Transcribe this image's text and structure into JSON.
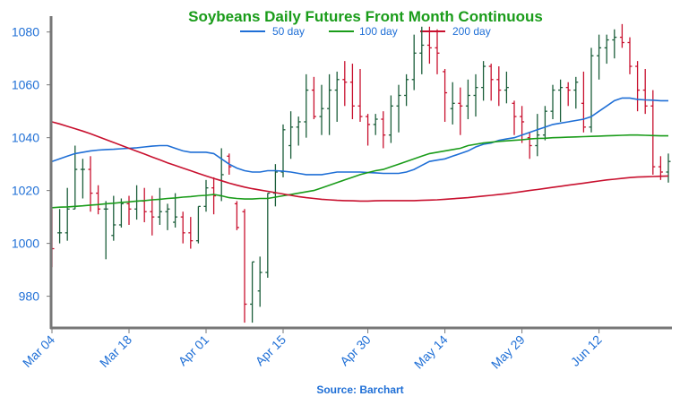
{
  "chart_data": {
    "type": "line",
    "title": "Soybeans Daily Futures Front Month Continuous",
    "source": "Source: Barchart",
    "xlabel": "",
    "ylabel": "",
    "ylim": [
      968,
      1086
    ],
    "yticks": [
      980,
      1000,
      1020,
      1040,
      1060,
      1080
    ],
    "x_tick_labels": [
      "Mar 04",
      "Mar 18",
      "Apr 01",
      "Apr 15",
      "Apr 30",
      "May 14",
      "May 29",
      "Jun 12"
    ],
    "x_tick_index": [
      0,
      10,
      20,
      30,
      41,
      51,
      61,
      71
    ],
    "grid": false,
    "legend_position": "top-center",
    "colors": {
      "title": "#1a9c1a",
      "axis_text": "#1f6fd6",
      "axis_line": "#777777",
      "ohlc_up": "#1b5e3a",
      "ohlc_down": "#c8102e",
      "ma50": "#1f6fd6",
      "ma100": "#1a9c1a",
      "ma200": "#c8102e"
    },
    "ohlc": [
      [
        1013,
        1013,
        991,
        998
      ],
      [
        1004,
        1013,
        1000,
        1004
      ],
      [
        1004,
        1021,
        1001,
        1013
      ],
      [
        1013,
        1037,
        1013,
        1028
      ],
      [
        1028,
        1032,
        1017,
        1028
      ],
      [
        1028,
        1033,
        1012,
        1019
      ],
      [
        1019,
        1022,
        1011,
        1013
      ],
      [
        1013,
        1016,
        994,
        1013
      ],
      [
        1003,
        1018,
        1001,
        1007
      ],
      [
        1007,
        1017,
        1006,
        1015
      ],
      [
        1015,
        1018,
        1007,
        1013
      ],
      [
        1013,
        1022,
        1009,
        1016
      ],
      [
        1016,
        1021,
        1008,
        1012
      ],
      [
        1012,
        1018,
        1003,
        1010
      ],
      [
        1010,
        1021,
        1007,
        1012
      ],
      [
        1012,
        1015,
        1005,
        1013
      ],
      [
        1008,
        1019,
        1006,
        1010
      ],
      [
        1010,
        1012,
        1000,
        1004
      ],
      [
        1004,
        1010,
        998,
        1001
      ],
      [
        1001,
        1014,
        1000,
        1014
      ],
      [
        1014,
        1024,
        1012,
        1021
      ],
      [
        1021,
        1025,
        1011,
        1018
      ],
      [
        1018,
        1036,
        1016,
        1026
      ],
      [
        1033,
        1034,
        1026,
        1029
      ],
      [
        1015,
        1016,
        1005,
        1006
      ],
      [
        1012,
        1013,
        970,
        977
      ],
      [
        977,
        993,
        970,
        993
      ],
      [
        982,
        995,
        976,
        989
      ],
      [
        989,
        1019,
        987,
        1019
      ],
      [
        1019,
        1030,
        1014,
        1027
      ],
      [
        1027,
        1045,
        1025,
        1043
      ],
      [
        1037,
        1050,
        1032,
        1044
      ],
      [
        1044,
        1048,
        1037,
        1046
      ],
      [
        1046,
        1064,
        1040,
        1058
      ],
      [
        1058,
        1063,
        1047,
        1048
      ],
      [
        1048,
        1060,
        1041,
        1051
      ],
      [
        1051,
        1064,
        1041,
        1058
      ],
      [
        1058,
        1065,
        1046,
        1062
      ],
      [
        1062,
        1069,
        1052,
        1061
      ],
      [
        1061,
        1068,
        1047,
        1052
      ],
      [
        1052,
        1066,
        1046,
        1048
      ],
      [
        1048,
        1049,
        1037,
        1045
      ],
      [
        1045,
        1049,
        1041,
        1047
      ],
      [
        1047,
        1050,
        1036,
        1041
      ],
      [
        1041,
        1056,
        1038,
        1052
      ],
      [
        1052,
        1060,
        1042,
        1056
      ],
      [
        1056,
        1064,
        1052,
        1062
      ],
      [
        1062,
        1079,
        1058,
        1072
      ],
      [
        1072,
        1082,
        1064,
        1075
      ],
      [
        1075,
        1082,
        1068,
        1074
      ],
      [
        1074,
        1081,
        1064,
        1072
      ],
      [
        1065,
        1066,
        1046,
        1057
      ],
      [
        1051,
        1061,
        1045,
        1053
      ],
      [
        1053,
        1059,
        1041,
        1052
      ],
      [
        1052,
        1062,
        1047,
        1056
      ],
      [
        1056,
        1064,
        1048,
        1059
      ],
      [
        1059,
        1069,
        1054,
        1067
      ],
      [
        1067,
        1068,
        1054,
        1062
      ],
      [
        1062,
        1067,
        1052,
        1058
      ],
      [
        1058,
        1065,
        1053,
        1059
      ],
      [
        1053,
        1054,
        1041,
        1048
      ],
      [
        1048,
        1052,
        1038,
        1046
      ],
      [
        1040,
        1042,
        1032,
        1037
      ],
      [
        1037,
        1049,
        1033,
        1041
      ],
      [
        1041,
        1052,
        1039,
        1050
      ],
      [
        1050,
        1060,
        1047,
        1058
      ],
      [
        1058,
        1062,
        1046,
        1059
      ],
      [
        1059,
        1061,
        1052,
        1058
      ],
      [
        1058,
        1063,
        1051,
        1061
      ],
      [
        1053,
        1065,
        1042,
        1044
      ],
      [
        1044,
        1074,
        1042,
        1071
      ],
      [
        1071,
        1079,
        1062,
        1074
      ],
      [
        1074,
        1079,
        1068,
        1077
      ],
      [
        1077,
        1081,
        1070,
        1078
      ],
      [
        1078,
        1083,
        1074,
        1076
      ],
      [
        1076,
        1078,
        1064,
        1067
      ],
      [
        1067,
        1069,
        1050,
        1058
      ],
      [
        1058,
        1066,
        1049,
        1052
      ],
      [
        1052,
        1058,
        1026,
        1029
      ],
      [
        1029,
        1033,
        1024,
        1027
      ],
      [
        1027,
        1034,
        1023,
        1031
      ]
    ],
    "series": [
      {
        "name": "50 day",
        "values": [
          1031,
          1032,
          1033,
          1034,
          1034.5,
          1035,
          1035.3,
          1035.5,
          1035.6,
          1035.8,
          1036,
          1036.2,
          1036.5,
          1036.8,
          1037,
          1037,
          1036,
          1035,
          1034.5,
          1034.5,
          1034.5,
          1034,
          1032,
          1030,
          1028.5,
          1027.5,
          1027,
          1027,
          1027.5,
          1027.5,
          1027.3,
          1027,
          1026.5,
          1026,
          1026,
          1026,
          1026.5,
          1027,
          1027,
          1027,
          1027,
          1026.8,
          1026.7,
          1026.5,
          1026.5,
          1026.5,
          1027,
          1028,
          1029.5,
          1031,
          1031.5,
          1032,
          1033,
          1034,
          1035,
          1036.5,
          1037.5,
          1038,
          1039,
          1039.5,
          1040,
          1041,
          1042,
          1043,
          1044,
          1045,
          1045.5,
          1046,
          1046.5,
          1047,
          1048,
          1050,
          1052,
          1054,
          1055,
          1055,
          1054.5,
          1054.3,
          1054.2,
          1054,
          1054
        ]
      },
      {
        "name": "100 day",
        "values": [
          1013.5,
          1013.7,
          1013.8,
          1014,
          1014.2,
          1014.5,
          1014.7,
          1015,
          1015.2,
          1015.5,
          1015.7,
          1016,
          1016.2,
          1016.5,
          1016.7,
          1017,
          1017.2,
          1017.5,
          1017.7,
          1018,
          1018.2,
          1018.5,
          1018,
          1017.3,
          1017,
          1016.8,
          1016.8,
          1017,
          1017,
          1017.5,
          1018,
          1018.5,
          1019,
          1019.5,
          1020,
          1021,
          1022,
          1023,
          1024,
          1025,
          1026,
          1026.8,
          1027.5,
          1028,
          1029,
          1030,
          1031,
          1032,
          1033,
          1034,
          1034.5,
          1035,
          1035.5,
          1036,
          1037,
          1037.5,
          1038,
          1038.3,
          1038.6,
          1038.8,
          1039,
          1039.2,
          1039.5,
          1039.7,
          1039.8,
          1040,
          1040.1,
          1040.2,
          1040.3,
          1040.4,
          1040.5,
          1040.6,
          1040.7,
          1040.8,
          1040.9,
          1041,
          1041,
          1040.9,
          1040.8,
          1040.7,
          1040.7
        ]
      },
      {
        "name": "200 day",
        "values": [
          1046,
          1045.2,
          1044.3,
          1043.4,
          1042.5,
          1041.5,
          1040.4,
          1039.3,
          1038.2,
          1037.1,
          1036,
          1034.9,
          1033.8,
          1032.7,
          1031.6,
          1030.5,
          1029.5,
          1028.5,
          1027.5,
          1026.5,
          1025.5,
          1024.6,
          1023.7,
          1022.8,
          1022,
          1021.3,
          1020.7,
          1020.2,
          1019.7,
          1019.2,
          1018.7,
          1018.2,
          1017.7,
          1017.3,
          1017,
          1016.7,
          1016.5,
          1016.3,
          1016.2,
          1016.1,
          1016,
          1016,
          1016.1,
          1016.2,
          1016.2,
          1016.2,
          1016.2,
          1016.2,
          1016.3,
          1016.4,
          1016.5,
          1016.7,
          1016.9,
          1017.1,
          1017.3,
          1017.6,
          1017.9,
          1018.2,
          1018.5,
          1018.8,
          1019.2,
          1019.6,
          1020,
          1020.4,
          1020.8,
          1021.2,
          1021.6,
          1022,
          1022.4,
          1022.8,
          1023.2,
          1023.6,
          1024,
          1024.3,
          1024.6,
          1024.9,
          1025.1,
          1025.2,
          1025.3,
          1025.4,
          1025.5
        ]
      }
    ]
  }
}
